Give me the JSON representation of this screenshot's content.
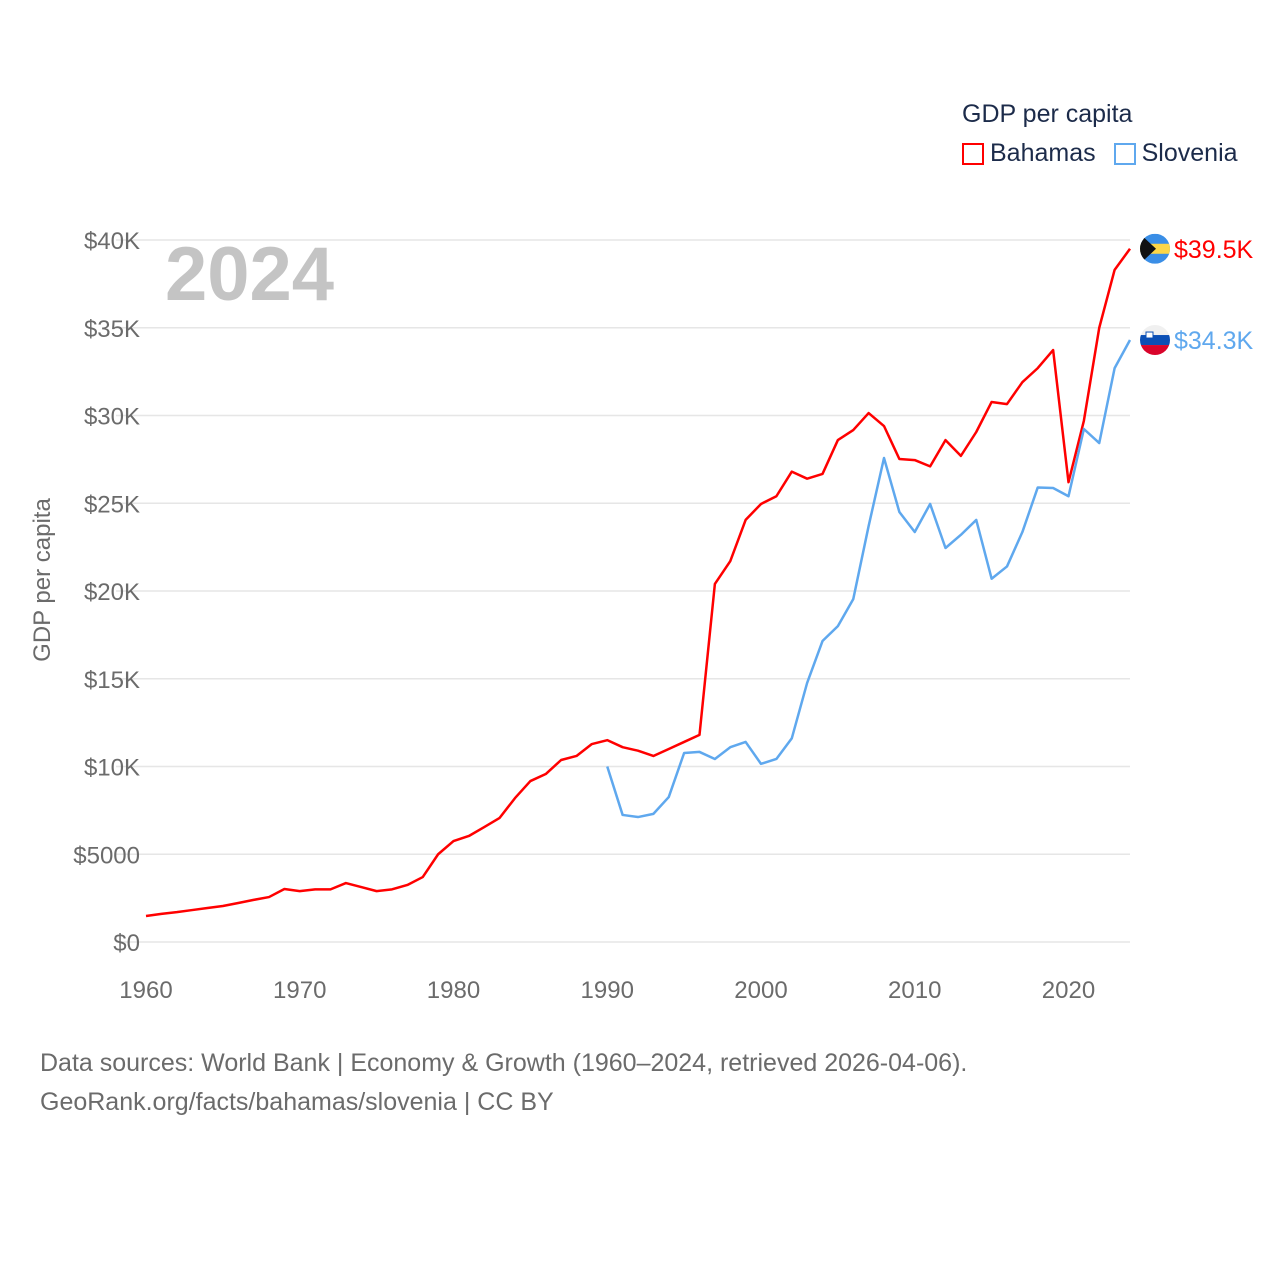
{
  "legend": {
    "title": "GDP per capita"
  },
  "footer": {
    "line1": "Data sources: World Bank | Economy & Growth (1960–2024, retrieved 2026-04-06).",
    "line2": "GeoRank.org/facts/bahamas/slovenia | CC BY"
  },
  "chart_data": {
    "type": "line",
    "title": "",
    "year_label": "2024",
    "xlabel": "",
    "ylabel": "GDP per capita",
    "xlim": [
      1960,
      2024
    ],
    "ylim": [
      0,
      40000
    ],
    "x_ticks": [
      1960,
      1970,
      1980,
      1990,
      2000,
      2010,
      2020
    ],
    "y_ticks": [
      0,
      5000,
      10000,
      15000,
      20000,
      25000,
      30000,
      35000,
      40000
    ],
    "y_tick_labels": [
      "$0",
      "$5000",
      "$10K",
      "$15K",
      "$20K",
      "$25K",
      "$30K",
      "$35K",
      "$40K"
    ],
    "grid": true,
    "legend_position": "top-right",
    "series": [
      {
        "name": "Bahamas",
        "color": "#ff0000",
        "end_label": "$39.5K",
        "flag": "bahamas-flag",
        "start_year": 1960,
        "values": [
          1480,
          1600,
          1700,
          1820,
          1940,
          2050,
          2220,
          2400,
          2560,
          3020,
          2900,
          3000,
          3000,
          3360,
          3130,
          2900,
          3000,
          3250,
          3700,
          5000,
          5750,
          6040,
          6550,
          7070,
          8200,
          9170,
          9570,
          10370,
          10600,
          11280,
          11500,
          11100,
          10900,
          10600,
          11000,
          11400,
          11800,
          20400,
          21700,
          24050,
          24960,
          25400,
          26800,
          26400,
          26670,
          28600,
          29170,
          30140,
          29400,
          27520,
          27460,
          27100,
          28600,
          27700,
          29060,
          30770,
          30650,
          31900,
          32700,
          33730,
          26200,
          29700,
          35000,
          38300,
          39500
        ]
      },
      {
        "name": "Slovenia",
        "color": "#5fa8ee",
        "end_label": "$34.3K",
        "flag": "slovenia-flag",
        "start_year": 1990,
        "values": [
          10000,
          7240,
          7120,
          7300,
          8260,
          10770,
          10830,
          10430,
          11100,
          11400,
          10150,
          10430,
          11600,
          14760,
          17150,
          18000,
          19540,
          23700,
          27580,
          24500,
          23360,
          24960,
          22450,
          23200,
          24050,
          20700,
          21400,
          23360,
          25900,
          25870,
          25400,
          29230,
          28430,
          32700,
          34300
        ]
      }
    ]
  }
}
